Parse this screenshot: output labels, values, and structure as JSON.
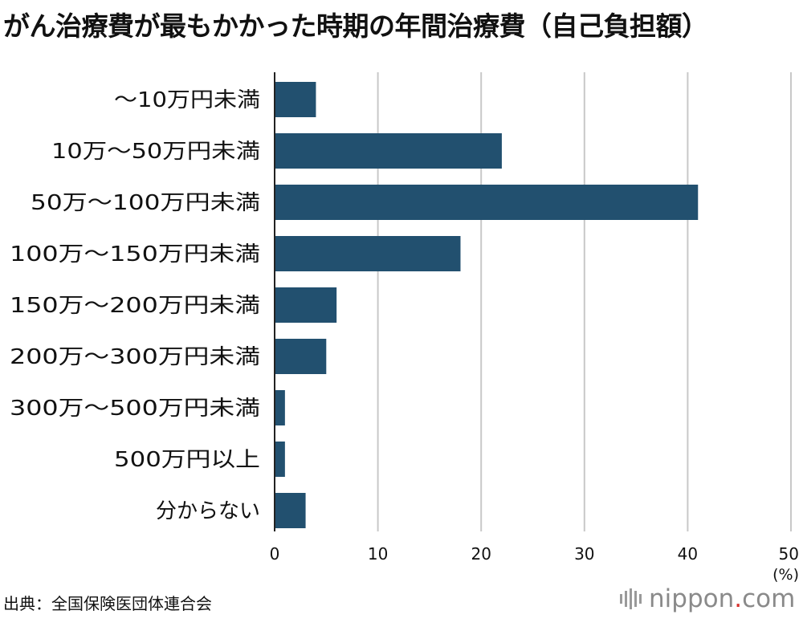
{
  "title": "がん治療費が最もかかった時期の年間治療費（自己負担額）",
  "source": "出典：全国保険医団体連合会",
  "logo": {
    "name": "nippon",
    "dot": ".",
    "tld": "com",
    "accent_color": "#d8322d"
  },
  "chart_data": {
    "type": "bar",
    "orientation": "horizontal",
    "categories": [
      "〜10万円未満",
      "10万〜50万円未満",
      "50万〜100万円未満",
      "100万〜150万円未満",
      "150万〜200万円未満",
      "200万〜300万円未満",
      "300万〜500万円未満",
      "500万円以上",
      "分からない"
    ],
    "values": [
      4,
      22,
      41,
      18,
      6,
      5,
      1,
      1,
      3
    ],
    "xlim": [
      0,
      50
    ],
    "xticks": [
      0,
      10,
      20,
      30,
      40,
      50
    ],
    "unit": "(%)",
    "bar_color": "#22506f",
    "grid": true
  }
}
